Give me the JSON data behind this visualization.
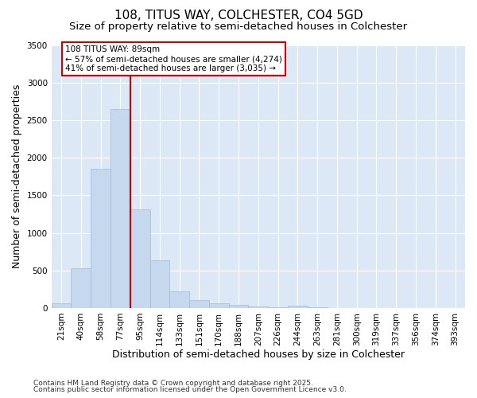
{
  "title1": "108, TITUS WAY, COLCHESTER, CO4 5GD",
  "title2": "Size of property relative to semi-detached houses in Colchester",
  "xlabel": "Distribution of semi-detached houses by size in Colchester",
  "ylabel": "Number of semi-detached properties",
  "bar_labels": [
    "21sqm",
    "40sqm",
    "58sqm",
    "77sqm",
    "95sqm",
    "114sqm",
    "133sqm",
    "151sqm",
    "170sqm",
    "188sqm",
    "207sqm",
    "226sqm",
    "244sqm",
    "263sqm",
    "281sqm",
    "300sqm",
    "319sqm",
    "337sqm",
    "356sqm",
    "374sqm",
    "393sqm"
  ],
  "bar_values": [
    65,
    530,
    1850,
    2650,
    1310,
    640,
    220,
    105,
    60,
    40,
    25,
    15,
    30,
    5,
    3,
    2,
    1,
    1,
    0,
    0,
    0
  ],
  "bar_color": "#c5d8ee",
  "bar_edge_color": "#a0bcd8",
  "vline_index": 4,
  "annotation_line1": "108 TITUS WAY: 89sqm",
  "annotation_line2": "← 57% of semi-detached houses are smaller (4,274)",
  "annotation_line3": "41% of semi-detached houses are larger (3,035) →",
  "ylim": [
    0,
    3500
  ],
  "footer1": "Contains HM Land Registry data © Crown copyright and database right 2025.",
  "footer2": "Contains public sector information licensed under the Open Government Licence v3.0.",
  "fig_bg_color": "#ffffff",
  "ax_bg_color": "#dce8f5",
  "grid_color": "#ffffff",
  "annotation_box_color": "#ffffff",
  "annotation_box_edge": "#cc0000",
  "vline_color": "#cc0000",
  "title_fontsize": 11,
  "subtitle_fontsize": 9.5,
  "axis_label_fontsize": 9,
  "tick_fontsize": 7.5,
  "annotation_fontsize": 7.5,
  "footer_fontsize": 6.5
}
